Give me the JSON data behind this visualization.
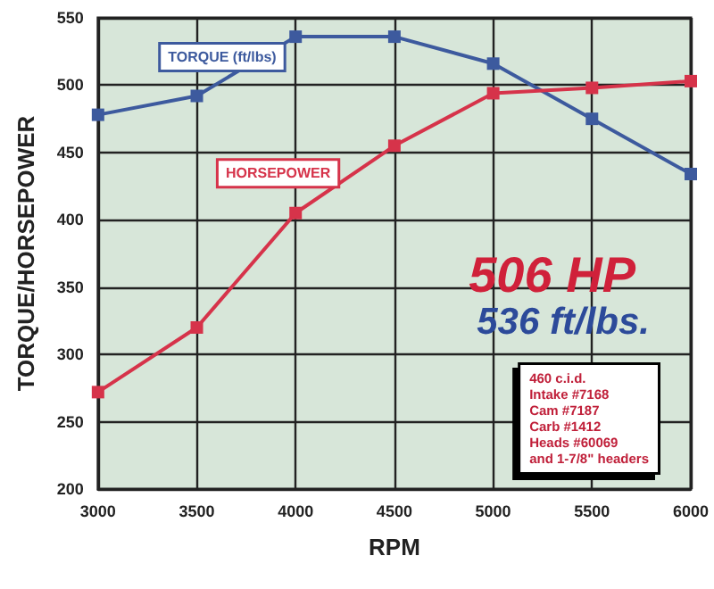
{
  "chart_data": {
    "type": "line",
    "xlabel": "RPM",
    "ylabel": "TORQUE/HORSEPOWER",
    "x": [
      3000,
      3500,
      4000,
      4500,
      5000,
      5500,
      6000
    ],
    "series": [
      {
        "name": "TORQUE (ft/lbs)",
        "color": "#3d5a9e",
        "values": [
          478,
          492,
          536,
          536,
          516,
          475,
          434
        ]
      },
      {
        "name": "HORSEPOWER",
        "color": "#d6334a",
        "values": [
          272,
          320,
          405,
          455,
          494,
          498,
          503
        ]
      }
    ],
    "xlim": [
      3000,
      6000
    ],
    "xticks": [
      3000,
      3500,
      4000,
      4500,
      5000,
      5500,
      6000
    ],
    "ylim": [
      200,
      550
    ],
    "yticks": [
      200,
      250,
      300,
      350,
      400,
      450,
      500,
      550
    ],
    "grid": true,
    "marker": "square",
    "line_style": "solid",
    "annotations": [
      "506 HP",
      "536 ft/lbs.",
      "460 c.i.d.\nIntake #7168\nCam #7187\nCarb #1412\nHeads #60069\nand 1-7/8\" headers"
    ]
  }
}
